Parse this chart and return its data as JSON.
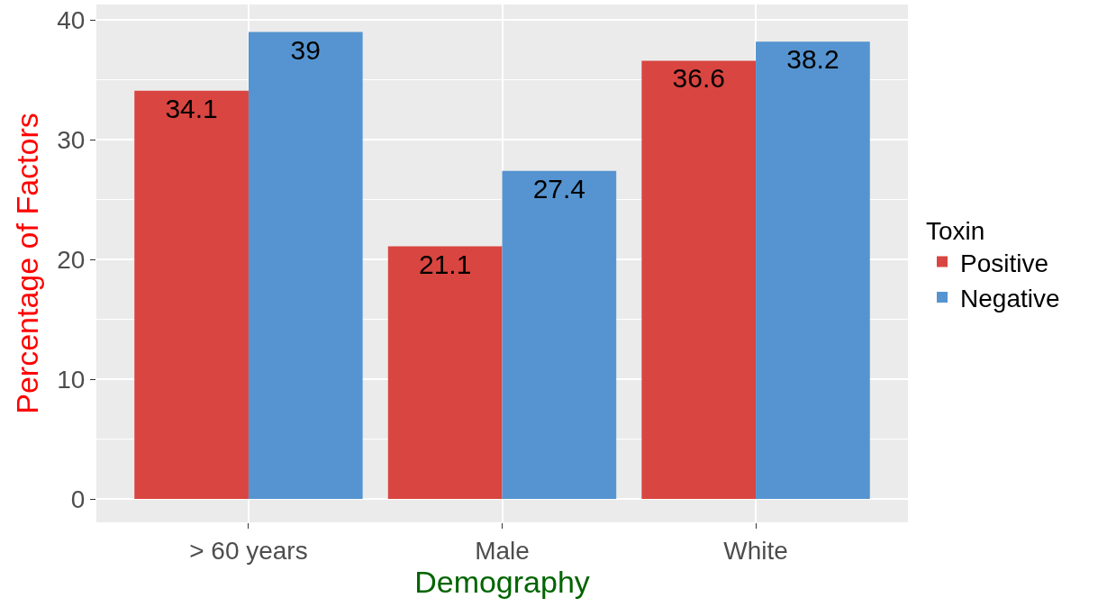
{
  "chart_data": {
    "type": "bar",
    "xlabel": "Demography",
    "ylabel": "Percentage of Factors",
    "legend_title": "Toxin",
    "categories": [
      "> 60 years",
      "Male",
      "White"
    ],
    "series": [
      {
        "name": "Positive",
        "color": "#d94540",
        "values": [
          34.1,
          21.1,
          36.6
        ]
      },
      {
        "name": "Negative",
        "color": "#5594d0",
        "values": [
          39,
          27.4,
          38.2
        ]
      }
    ],
    "ylim": [
      -1.95,
      41.3
    ],
    "yticks": [
      0,
      10,
      20,
      30,
      40
    ],
    "grid": true,
    "legend": "right",
    "data_labels": true
  }
}
